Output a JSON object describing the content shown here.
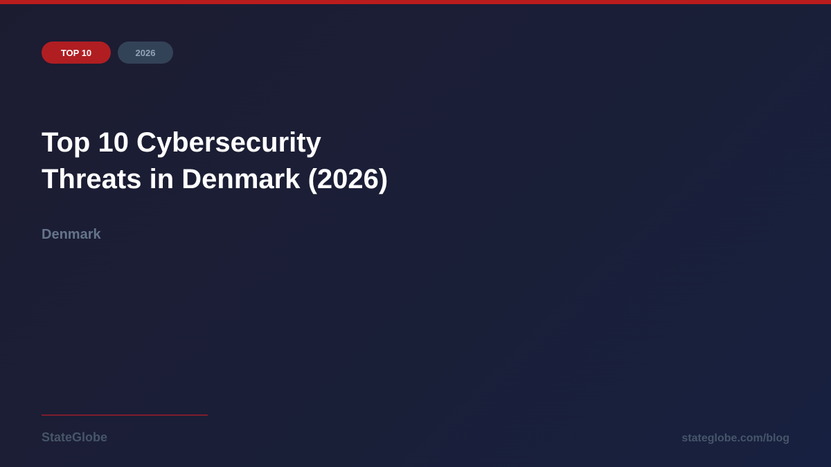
{
  "colors": {
    "accent": "#b91c1c",
    "background": "#1b1e36",
    "muted": "#64748b"
  },
  "badges": {
    "category": "TOP 10",
    "year": "2026"
  },
  "title_lines": [
    "Top 10 Cybersecurity",
    "Threats in Denmark (2026)"
  ],
  "subtitle": "Denmark",
  "footer": {
    "brand": "StateGlobe",
    "url": "stateglobe.com/blog"
  }
}
